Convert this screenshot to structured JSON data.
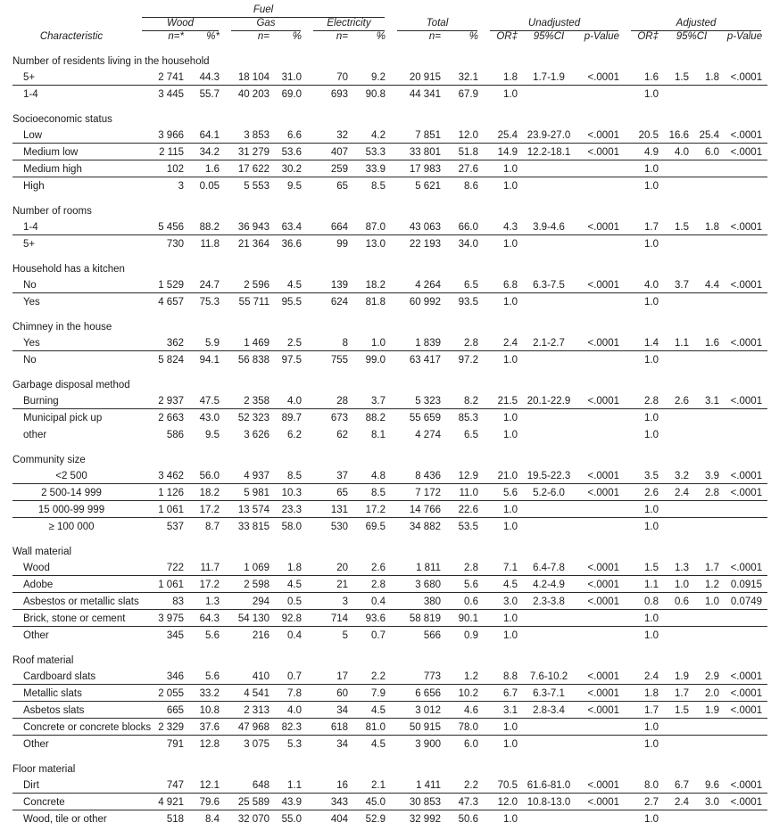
{
  "table": {
    "header": {
      "characteristic": "Characteristic",
      "fuel": "Fuel",
      "wood": "Wood",
      "gas": "Gas",
      "electricity": "Electricity",
      "total": "Total",
      "unadjusted": "Unadjusted",
      "adjusted": "Adjusted",
      "sub": {
        "wood_n": "n=*",
        "wood_pct": "%*",
        "n": "n=",
        "pct": "%",
        "or": "OR‡",
        "ci": "95%CI",
        "p": "p-Value"
      }
    },
    "sections": [
      {
        "title": "Number of residents living in the household",
        "rows": [
          {
            "label": "5+",
            "rule": true,
            "cells": [
              "2 741",
              "44.3",
              "18 104",
              "31.0",
              "70",
              "9.2",
              "20 915",
              "32.1",
              "1.8",
              "1.7-1.9",
              "<.0001",
              "1.6",
              "1.5",
              "1.8",
              "<.0001"
            ]
          },
          {
            "label": "1-4",
            "rule": false,
            "cells": [
              "3 445",
              "55.7",
              "40 203",
              "69.0",
              "693",
              "90.8",
              "44 341",
              "67.9",
              "1.0",
              "",
              "",
              "1.0",
              "",
              "",
              ""
            ]
          }
        ]
      },
      {
        "title": "Socioeconomic status",
        "rows": [
          {
            "label": "Low",
            "rule": true,
            "cells": [
              "3 966",
              "64.1",
              "3 853",
              "6.6",
              "32",
              "4.2",
              "7 851",
              "12.0",
              "25.4",
              "23.9-27.0",
              "<.0001",
              "20.5",
              "16.6",
              "25.4",
              "<.0001"
            ]
          },
          {
            "label": "Medium low",
            "rule": true,
            "cells": [
              "2 115",
              "34.2",
              "31 279",
              "53.6",
              "407",
              "53.3",
              "33 801",
              "51.8",
              "14.9",
              "12.2-18.1",
              "<.0001",
              "4.9",
              "4.0",
              "6.0",
              "<.0001"
            ]
          },
          {
            "label": "Medium high",
            "rule": true,
            "cells": [
              "102",
              "1.6",
              "17 622",
              "30.2",
              "259",
              "33.9",
              "17 983",
              "27.6",
              "1.0",
              "",
              "",
              "1.0",
              "",
              "",
              ""
            ]
          },
          {
            "label": "High",
            "rule": false,
            "cells": [
              "3",
              "0.05",
              "5 553",
              "9.5",
              "65",
              "8.5",
              "5 621",
              "8.6",
              "1.0",
              "",
              "",
              "1.0",
              "",
              "",
              ""
            ]
          }
        ]
      },
      {
        "title": "Number of rooms",
        "rows": [
          {
            "label": "1-4",
            "rule": true,
            "cells": [
              "5 456",
              "88.2",
              "36 943",
              "63.4",
              "664",
              "87.0",
              "43 063",
              "66.0",
              "4.3",
              "3.9-4.6",
              "<.0001",
              "1.7",
              "1.5",
              "1.8",
              "<.0001"
            ]
          },
          {
            "label": "5+",
            "rule": false,
            "cells": [
              "730",
              "11.8",
              "21 364",
              "36.6",
              "99",
              "13.0",
              "22 193",
              "34.0",
              "1.0",
              "",
              "",
              "1.0",
              "",
              "",
              ""
            ]
          }
        ]
      },
      {
        "title": "Household has a kitchen",
        "rows": [
          {
            "label": "No",
            "rule": true,
            "cells": [
              "1 529",
              "24.7",
              "2 596",
              "4.5",
              "139",
              "18.2",
              "4 264",
              "6.5",
              "6.8",
              "6.3-7.5",
              "<.0001",
              "4.0",
              "3.7",
              "4.4",
              "<.0001"
            ]
          },
          {
            "label": "Yes",
            "rule": false,
            "cells": [
              "4 657",
              "75.3",
              "55 711",
              "95.5",
              "624",
              "81.8",
              "60 992",
              "93.5",
              "1.0",
              "",
              "",
              "1.0",
              "",
              "",
              ""
            ]
          }
        ]
      },
      {
        "title": "Chimney in the house",
        "rows": [
          {
            "label": "Yes",
            "rule": true,
            "cells": [
              "362",
              "5.9",
              "1 469",
              "2.5",
              "8",
              "1.0",
              "1 839",
              "2.8",
              "2.4",
              "2.1-2.7",
              "<.0001",
              "1.4",
              "1.1",
              "1.6",
              "<.0001"
            ]
          },
          {
            "label": "No",
            "rule": false,
            "cells": [
              "5 824",
              "94.1",
              "56 838",
              "97.5",
              "755",
              "99.0",
              "63 417",
              "97.2",
              "1.0",
              "",
              "",
              "1.0",
              "",
              "",
              ""
            ]
          }
        ]
      },
      {
        "title": "Garbage disposal method",
        "rows": [
          {
            "label": "Burning",
            "rule": true,
            "cells": [
              "2 937",
              "47.5",
              "2 358",
              "4.0",
              "28",
              "3.7",
              "5 323",
              "8.2",
              "21.5",
              "20.1-22.9",
              "<.0001",
              "2.8",
              "2.6",
              "3.1",
              "<.0001"
            ]
          },
          {
            "label": "Municipal pick up",
            "rule": false,
            "cells": [
              "2 663",
              "43.0",
              "52 323",
              "89.7",
              "673",
              "88.2",
              "55 659",
              "85.3",
              "1.0",
              "",
              "",
              "1.0",
              "",
              "",
              ""
            ]
          },
          {
            "label": "other",
            "rule": false,
            "cells": [
              "586",
              "9.5",
              "3 626",
              "6.2",
              "62",
              "8.1",
              "4 274",
              "6.5",
              "1.0",
              "",
              "",
              "1.0",
              "",
              "",
              ""
            ]
          }
        ]
      },
      {
        "title": "Community size",
        "rows": [
          {
            "label": "<2 500",
            "rule": true,
            "center": true,
            "cells": [
              "3 462",
              "56.0",
              "4 937",
              "8.5",
              "37",
              "4.8",
              "8 436",
              "12.9",
              "21.0",
              "19.5-22.3",
              "<.0001",
              "3.5",
              "3.2",
              "3.9",
              "<.0001"
            ]
          },
          {
            "label": "2 500-14 999",
            "rule": true,
            "center": true,
            "cells": [
              "1 126",
              "18.2",
              "5 981",
              "10.3",
              "65",
              "8.5",
              "7 172",
              "11.0",
              "5.6",
              "5.2-6.0",
              "<.0001",
              "2.6",
              "2.4",
              "2.8",
              "<.0001"
            ]
          },
          {
            "label": "15 000-99 999",
            "rule": true,
            "center": true,
            "cells": [
              "1 061",
              "17.2",
              "13 574",
              "23.3",
              "131",
              "17.2",
              "14 766",
              "22.6",
              "1.0",
              "",
              "",
              "1.0",
              "",
              "",
              ""
            ]
          },
          {
            "label": "≥ 100 000",
            "rule": false,
            "center": true,
            "cells": [
              "537",
              "8.7",
              "33 815",
              "58.0",
              "530",
              "69.5",
              "34 882",
              "53.5",
              "1.0",
              "",
              "",
              "1.0",
              "",
              "",
              ""
            ]
          }
        ]
      },
      {
        "title": "Wall material",
        "rows": [
          {
            "label": "Wood",
            "rule": true,
            "cells": [
              "722",
              "11.7",
              "1 069",
              "1.8",
              "20",
              "2.6",
              "1 811",
              "2.8",
              "7.1",
              "6.4-7.8",
              "<.0001",
              "1.5",
              "1.3",
              "1.7",
              "<.0001"
            ]
          },
          {
            "label": "Adobe",
            "rule": true,
            "cells": [
              "1 061",
              "17.2",
              "2 598",
              "4.5",
              "21",
              "2.8",
              "3 680",
              "5.6",
              "4.5",
              "4.2-4.9",
              "<.0001",
              "1.1",
              "1.0",
              "1.2",
              "0.0915"
            ]
          },
          {
            "label": "Asbestos or metallic slats",
            "rule": true,
            "cells": [
              "83",
              "1.3",
              "294",
              "0.5",
              "3",
              "0.4",
              "380",
              "0.6",
              "3.0",
              "2.3-3.8",
              "<.0001",
              "0.8",
              "0.6",
              "1.0",
              "0.0749"
            ]
          },
          {
            "label": "Brick, stone or cement",
            "rule": true,
            "cells": [
              "3 975",
              "64.3",
              "54 130",
              "92.8",
              "714",
              "93.6",
              "58 819",
              "90.1",
              "1.0",
              "",
              "",
              "1.0",
              "",
              "",
              ""
            ]
          },
          {
            "label": "Other",
            "rule": false,
            "cells": [
              "345",
              "5.6",
              "216",
              "0.4",
              "5",
              "0.7",
              "566",
              "0.9",
              "1.0",
              "",
              "",
              "1.0",
              "",
              "",
              ""
            ]
          }
        ]
      },
      {
        "title": "Roof material",
        "rows": [
          {
            "label": "Cardboard slats",
            "rule": true,
            "cells": [
              "346",
              "5.6",
              "410",
              "0.7",
              "17",
              "2.2",
              "773",
              "1.2",
              "8.8",
              "7.6-10.2",
              "<.0001",
              "2.4",
              "1.9",
              "2.9",
              "<.0001"
            ]
          },
          {
            "label": "Metallic slats",
            "rule": true,
            "cells": [
              "2 055",
              "33.2",
              "4 541",
              "7.8",
              "60",
              "7.9",
              "6 656",
              "10.2",
              "6.7",
              "6.3-7.1",
              "<.0001",
              "1.8",
              "1.7",
              "2.0",
              "<.0001"
            ]
          },
          {
            "label": "Asbetos slats",
            "rule": true,
            "cells": [
              "665",
              "10.8",
              "2 313",
              "4.0",
              "34",
              "4.5",
              "3 012",
              "4.6",
              "3.1",
              "2.8-3.4",
              "<.0001",
              "1.7",
              "1.5",
              "1.9",
              "<.0001"
            ]
          },
          {
            "label": "Concrete or concrete blocks",
            "rule": true,
            "cells": [
              "2 329",
              "37.6",
              "47 968",
              "82.3",
              "618",
              "81.0",
              "50 915",
              "78.0",
              "1.0",
              "",
              "",
              "1.0",
              "",
              "",
              ""
            ]
          },
          {
            "label": "Other",
            "rule": false,
            "cells": [
              "791",
              "12.8",
              "3 075",
              "5.3",
              "34",
              "4.5",
              "3 900",
              "6.0",
              "1.0",
              "",
              "",
              "1.0",
              "",
              "",
              ""
            ]
          }
        ]
      },
      {
        "title": "Floor material",
        "rows": [
          {
            "label": "Dirt",
            "rule": true,
            "cells": [
              "747",
              "12.1",
              "648",
              "1.1",
              "16",
              "2.1",
              "1 411",
              "2.2",
              "70.5",
              "61.6-81.0",
              "<.0001",
              "8.0",
              "6.7",
              "9.6",
              "<.0001"
            ]
          },
          {
            "label": "Concrete",
            "rule": true,
            "cells": [
              "4 921",
              "79.6",
              "25 589",
              "43.9",
              "343",
              "45.0",
              "30 853",
              "47.3",
              "12.0",
              "10.8-13.0",
              "<.0001",
              "2.7",
              "2.4",
              "3.0",
              "<.0001"
            ]
          },
          {
            "label": "Wood, tile or other",
            "rule": false,
            "cells": [
              "518",
              "8.4",
              "32 070",
              "55.0",
              "404",
              "52.9",
              "32 992",
              "50.6",
              "1.0",
              "",
              "",
              "1.0",
              "",
              "",
              ""
            ]
          }
        ]
      }
    ]
  }
}
